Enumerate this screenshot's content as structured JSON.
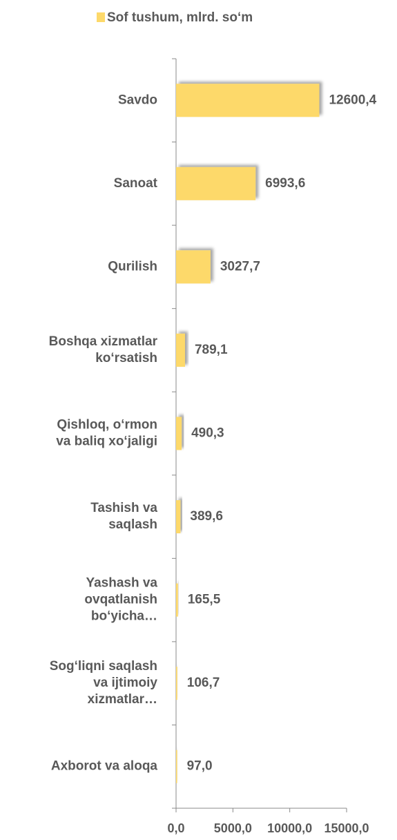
{
  "chart_data": {
    "type": "bar",
    "orientation": "horizontal",
    "legend": "top",
    "series": [
      {
        "name": "Sof tushum, mlrd. so‘m",
        "color": "#fdd96a",
        "values": [
          12600.4,
          6993.6,
          3027.7,
          789.1,
          490.3,
          389.6,
          165.5,
          106.7,
          97.0
        ],
        "value_labels": [
          "12600,4",
          "6993,6",
          "3027,7",
          "789,1",
          "490,3",
          "389,6",
          "165,5",
          "106,7",
          "97,0"
        ]
      }
    ],
    "categories": [
      "Savdo",
      "Sanoat",
      "Qurilish",
      "Boshqa xizmatlar\nko‘rsatish",
      "Qishloq, o‘rmon\nva baliq xo‘jaligi",
      "Tashish va\nsaqlash",
      "Yashash va\novqatlanish\nbo‘yicha…",
      "Sog‘liqni saqlash\nva ijtimoiy\nxizmatlar…",
      "Axborot va aloqa"
    ],
    "xlim": [
      0,
      15000
    ],
    "xticks": [
      {
        "value": 0,
        "label": "0,0"
      },
      {
        "value": 5000,
        "label": "5000,0"
      },
      {
        "value": 10000,
        "label": "10000,0"
      },
      {
        "value": 15000,
        "label": "15000,0"
      }
    ]
  }
}
